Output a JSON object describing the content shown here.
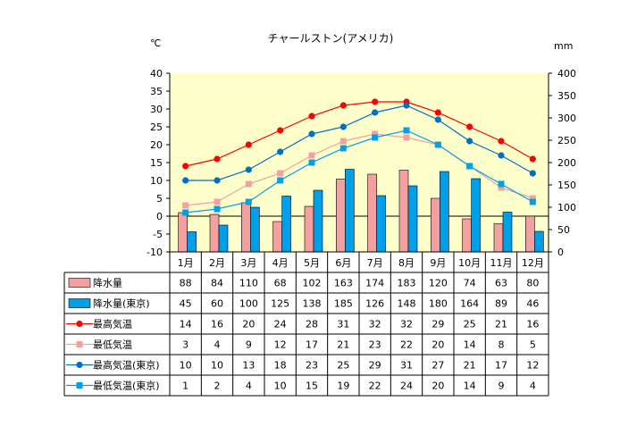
{
  "chart_data": {
    "type": "bar+line",
    "title": "チャールストン(アメリカ)",
    "left_unit": "℃",
    "right_unit": "mm",
    "left_axis": {
      "min": -10,
      "max": 40,
      "step": 5
    },
    "right_axis": {
      "min": 0,
      "max": 400,
      "step": 50
    },
    "categories": [
      "1月",
      "2月",
      "3月",
      "4月",
      "5月",
      "6月",
      "7月",
      "8月",
      "9月",
      "10月",
      "11月",
      "12月"
    ],
    "series": [
      {
        "name": "降水量",
        "kind": "bar",
        "axis": "right",
        "color": "#f4a0a0",
        "values": [
          88,
          84,
          110,
          68,
          102,
          163,
          174,
          183,
          120,
          74,
          63,
          80
        ]
      },
      {
        "name": "降水量(東京)",
        "kind": "bar",
        "axis": "right",
        "color": "#00a0e8",
        "values": [
          45,
          60,
          100,
          125,
          138,
          185,
          126,
          148,
          180,
          164,
          89,
          46
        ]
      },
      {
        "name": "最高気温",
        "kind": "line",
        "axis": "left",
        "color": "#ff0000",
        "marker": "circle",
        "values": [
          14,
          16,
          20,
          24,
          28,
          31,
          32,
          32,
          29,
          25,
          21,
          16
        ]
      },
      {
        "name": "最低気温",
        "kind": "line",
        "axis": "left",
        "color": "#f4a0a0",
        "marker": "square",
        "values": [
          3,
          4,
          9,
          12,
          17,
          21,
          23,
          22,
          20,
          14,
          8,
          5
        ]
      },
      {
        "name": "最高気温(東京)",
        "kind": "line",
        "axis": "left",
        "color": "#0070c0",
        "marker": "circle",
        "values": [
          10,
          10,
          13,
          18,
          23,
          25,
          29,
          31,
          27,
          21,
          17,
          12
        ]
      },
      {
        "name": "最低気温(東京)",
        "kind": "line",
        "axis": "left",
        "color": "#00a0e8",
        "marker": "square",
        "values": [
          1,
          2,
          4,
          10,
          15,
          19,
          22,
          24,
          20,
          14,
          9,
          4
        ]
      }
    ]
  }
}
